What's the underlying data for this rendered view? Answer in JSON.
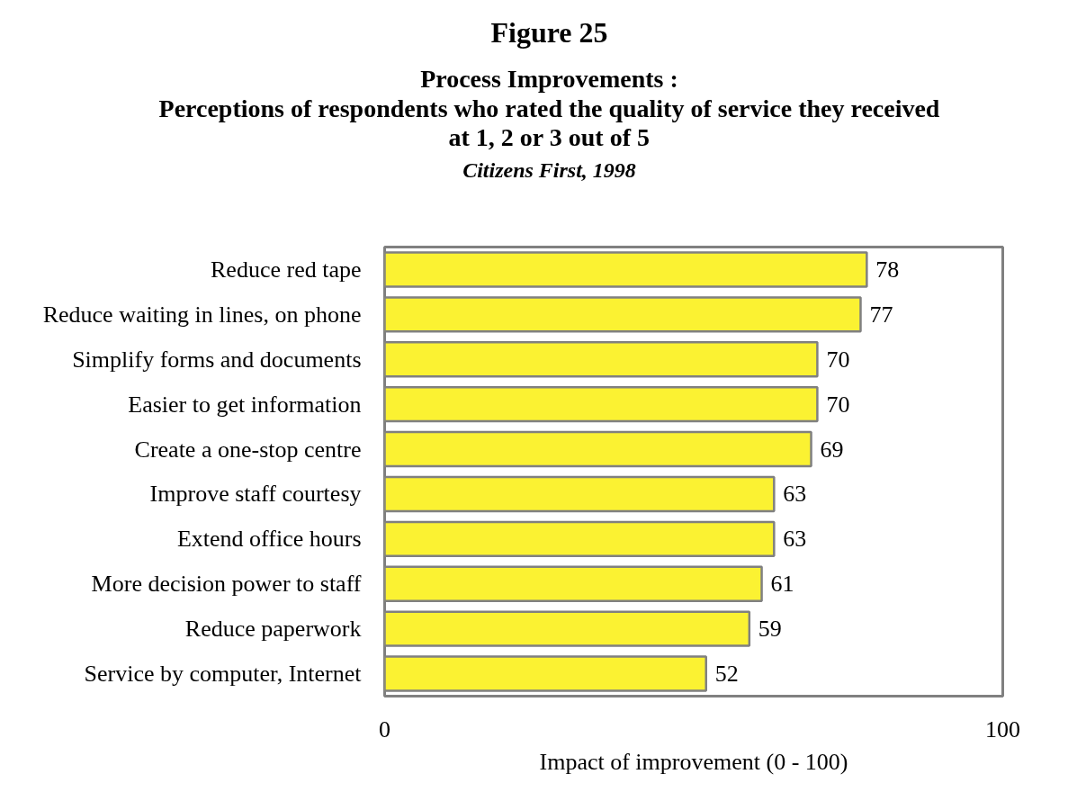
{
  "chart_data": {
    "type": "bar",
    "orientation": "horizontal",
    "title": "Figure 25",
    "subtitle": "Process Improvements :\nPerceptions of respondents who rated the quality of service they received\nat 1, 2 or 3 out of 5",
    "annotations": [
      "Citizens First, 1998"
    ],
    "xlabel": "Impact of improvement (0 - 100)",
    "categories": [
      "Reduce red tape",
      "Reduce waiting in lines, on phone",
      "Simplify forms and documents",
      "Easier to get information",
      "Create a one-stop centre",
      "Improve staff courtesy",
      "Extend office hours",
      "More decision power to staff",
      "Reduce paperwork",
      "Service by computer, Internet"
    ],
    "values": [
      78,
      77,
      70,
      70,
      69,
      63,
      63,
      61,
      59,
      52
    ],
    "color": "#fbf232",
    "xlim": [
      0,
      100
    ],
    "xticks": [
      0,
      100
    ],
    "data_labels": true
  }
}
